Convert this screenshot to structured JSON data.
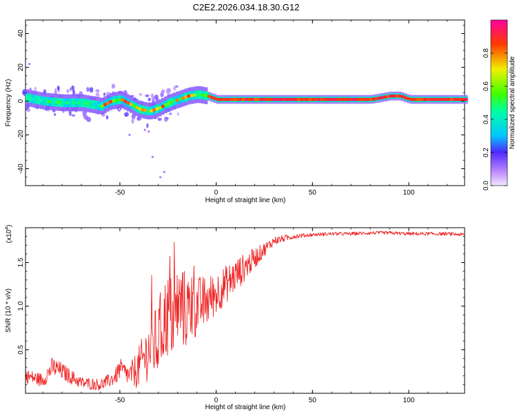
{
  "title": "C2E2.2026.034.18.30.G12",
  "chart_data": [
    {
      "type": "heatmap",
      "name": "spectrogram",
      "xlabel": "Height of straight line (km)",
      "ylabel": "Frequency (Hz)",
      "xlim": [
        -99,
        129
      ],
      "ylim": [
        -50,
        48
      ],
      "xticks": [
        "-50",
        "0",
        "50",
        "100"
      ],
      "xtick_values": [
        -50,
        0,
        50,
        100
      ],
      "yticks": [
        "40",
        "20",
        "0",
        "-20",
        "-40"
      ],
      "ytick_values": [
        40,
        20,
        0,
        -20,
        -40
      ],
      "ridge_x": [
        -99,
        -90,
        -80,
        -70,
        -60,
        -55,
        -50,
        -45,
        -40,
        -35,
        -30,
        -25,
        -20,
        -15,
        -10,
        -5,
        0,
        10,
        20,
        40,
        60,
        80,
        90,
        95,
        100,
        110,
        129
      ],
      "ridge_y": [
        2,
        0,
        -1,
        -1,
        -3,
        0,
        1,
        -2,
        -5,
        -6,
        -4,
        -1,
        1,
        3,
        4,
        3,
        1,
        1,
        1,
        1,
        1,
        1,
        3,
        3,
        1,
        1,
        1
      ],
      "colorbar": {
        "label": "Normalized spectral amplitude",
        "range": [
          0,
          1
        ],
        "ticks": [
          "0.0",
          "0.2",
          "0.4",
          "0.6",
          "0.8"
        ],
        "tick_values": [
          0,
          0.2,
          0.4,
          0.6,
          0.8
        ]
      }
    },
    {
      "type": "line",
      "name": "snr",
      "xlabel": "Height of straight line (km)",
      "ylabel": "SNR (10 * v/v)",
      "yscale_label": "(x10",
      "yscale_exp": "4",
      "yscale_close": ")",
      "color": "#ee2222",
      "xlim": [
        -99,
        129
      ],
      "ylim": [
        0,
        1.9
      ],
      "xticks": [
        "-50",
        "0",
        "50",
        "100"
      ],
      "xtick_values": [
        -50,
        0,
        50,
        100
      ],
      "yticks": [
        "0.5",
        "1.0",
        "1.5"
      ],
      "ytick_values": [
        0.5,
        1.0,
        1.5
      ],
      "envelope_x": [
        -99,
        -90,
        -85,
        -80,
        -70,
        -60,
        -55,
        -52,
        -50,
        -45,
        -40,
        -35,
        -30,
        -28,
        -25,
        -22,
        -20,
        -15,
        -10,
        -5,
        0,
        5,
        10,
        15,
        20,
        25,
        30,
        40,
        50,
        60,
        70,
        80,
        90,
        100,
        110,
        120,
        129
      ],
      "envelope_y": [
        0.2,
        0.15,
        0.3,
        0.25,
        0.12,
        0.1,
        0.15,
        0.2,
        0.28,
        0.2,
        0.3,
        0.5,
        0.6,
        0.8,
        0.9,
        0.85,
        1.0,
        0.95,
        1.0,
        1.05,
        1.15,
        1.25,
        1.35,
        1.45,
        1.55,
        1.65,
        1.75,
        1.8,
        1.82,
        1.83,
        1.83,
        1.84,
        1.84,
        1.83,
        1.83,
        1.83,
        1.82
      ],
      "noise_amplitude": [
        0.08,
        0.08,
        0.12,
        0.1,
        0.07,
        0.07,
        0.08,
        0.1,
        0.12,
        0.12,
        0.25,
        0.35,
        0.45,
        0.5,
        0.5,
        0.5,
        0.5,
        0.45,
        0.35,
        0.3,
        0.25,
        0.22,
        0.2,
        0.16,
        0.12,
        0.08,
        0.05,
        0.03,
        0.02,
        0.02,
        0.02,
        0.02,
        0.02,
        0.02,
        0.02,
        0.02,
        0.02
      ]
    }
  ]
}
